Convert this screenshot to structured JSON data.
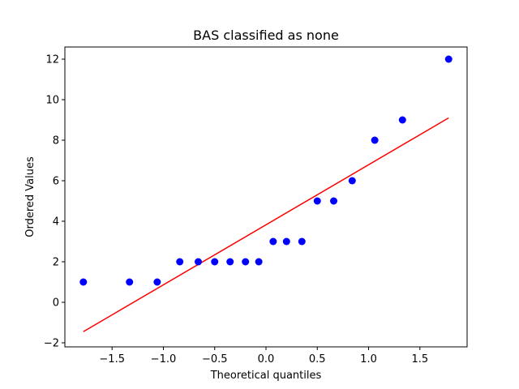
{
  "chart_data": {
    "type": "scatter",
    "title": "BAS classified as none",
    "xlabel": "Theoretical quantiles",
    "ylabel": "Ordered Values",
    "xlim": [
      -1.96,
      1.96
    ],
    "ylim": [
      -2.2,
      12.6
    ],
    "xticks": [
      -1.5,
      -1.0,
      -0.5,
      0.0,
      0.5,
      1.0,
      1.5
    ],
    "xtick_labels": [
      "−1.5",
      "−1.0",
      "−0.5",
      "0.0",
      "0.5",
      "1.0",
      "1.5"
    ],
    "yticks": [
      -2,
      0,
      2,
      4,
      6,
      8,
      10,
      12
    ],
    "ytick_labels": [
      "−2",
      "0",
      "2",
      "4",
      "6",
      "8",
      "10",
      "12"
    ],
    "grid": false,
    "series": [
      {
        "type": "scatter",
        "color": "#0000ff",
        "x": [
          -1.78,
          -1.33,
          -1.06,
          -0.84,
          -0.66,
          -0.5,
          -0.35,
          -0.2,
          -0.07,
          0.07,
          0.2,
          0.35,
          0.5,
          0.66,
          0.84,
          1.06,
          1.33,
          1.78
        ],
        "y": [
          1,
          1,
          1,
          2,
          2,
          2,
          2,
          2,
          2,
          3,
          3,
          3,
          5,
          5,
          6,
          8,
          9,
          12
        ]
      },
      {
        "type": "line",
        "color": "#ff0000",
        "x": [
          -1.78,
          1.78
        ],
        "y": [
          -1.45,
          9.1
        ]
      }
    ]
  }
}
